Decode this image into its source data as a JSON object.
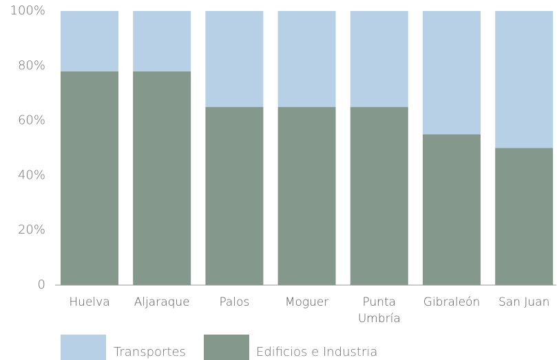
{
  "chart_data": {
    "type": "stacked_bar",
    "categories": [
      "Huelva",
      "Aljaraque",
      "Palos",
      "Moguer",
      "Punta Umbría",
      "Gibraleón",
      "San Juan"
    ],
    "series": [
      {
        "name": "Edificios e Industria",
        "color": "#84988b",
        "values": [
          78,
          78,
          65,
          65,
          65,
          55,
          50
        ]
      },
      {
        "name": "Transportes",
        "color": "#b8d0e6",
        "values": [
          22,
          22,
          35,
          35,
          35,
          45,
          50
        ]
      }
    ],
    "ylim": [
      0,
      100
    ],
    "yticks": [
      0,
      {
        "value": 20,
        "label": "20%"
      },
      {
        "value": 40,
        "label": "40%"
      },
      {
        "value": 60,
        "label": "60%"
      },
      {
        "value": 80,
        "label": "80%"
      },
      {
        "value": 100,
        "label": "100%"
      }
    ],
    "legend": "bottom-left"
  }
}
